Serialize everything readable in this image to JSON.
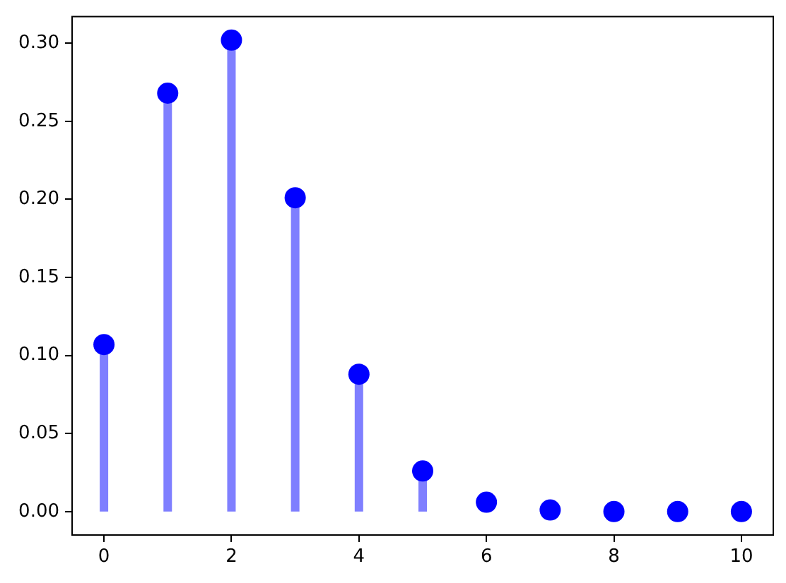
{
  "chart_data": {
    "type": "lollipop",
    "x": [
      0,
      1,
      2,
      3,
      4,
      5,
      6,
      7,
      8,
      9,
      10
    ],
    "series": [
      {
        "color": "#0000ff",
        "values": [
          0.107,
          0.268,
          0.302,
          0.201,
          0.088,
          0.026,
          0.006,
          0.001,
          0,
          0,
          0
        ]
      }
    ],
    "xlim": [
      -0.5,
      10.5
    ],
    "xticks": [
      0,
      2,
      4,
      6,
      8,
      10
    ],
    "ylim": [
      -0.015,
      0.317
    ],
    "yticks": [
      {
        "value": 0,
        "label": "0.00"
      },
      {
        "value": 0.05,
        "label": "0.05"
      },
      {
        "value": 0.1,
        "label": "0.10"
      },
      {
        "value": 0.15,
        "label": "0.15"
      },
      {
        "value": 0.2,
        "label": "0.20"
      },
      {
        "value": 0.25,
        "label": "0.25"
      },
      {
        "value": 0.3,
        "label": "0.30"
      }
    ],
    "marker": "circle",
    "grid": false,
    "legend": false
  }
}
